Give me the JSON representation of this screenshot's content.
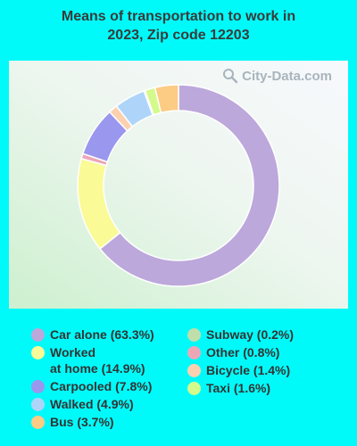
{
  "title": {
    "line1": "Means of transportation to work in",
    "line2": "2023, Zip code 12203"
  },
  "watermark": "City-Data.com",
  "chart_data": {
    "type": "pie",
    "donut": true,
    "start_angle_deg": 0,
    "slices": [
      {
        "label": "Car alone (63.3%)",
        "value": 63.3,
        "color": "#bca8db"
      },
      {
        "label": "Worked\nat home (14.9%)",
        "value": 14.9,
        "color": "#fafa96"
      },
      {
        "label": "Other (0.8%)",
        "value": 0.8,
        "color": "#eca7b7"
      },
      {
        "label": "Carpooled (7.8%)",
        "value": 7.8,
        "color": "#9a97ee"
      },
      {
        "label": "Bicycle (1.4%)",
        "value": 1.4,
        "color": "#fbd1b0"
      },
      {
        "label": "Walked (4.9%)",
        "value": 4.9,
        "color": "#aed5f9"
      },
      {
        "label": "Subway (0.2%)",
        "value": 0.2,
        "color": "#bfdeaa"
      },
      {
        "label": "Taxi (1.6%)",
        "value": 1.6,
        "color": "#d3fa8b"
      },
      {
        "label": "Bus (3.7%)",
        "value": 3.7,
        "color": "#fccb84"
      }
    ],
    "legend_columns": [
      [
        "Car alone (63.3%)",
        "Worked\nat home (14.9%)",
        "Carpooled (7.8%)",
        "Walked (4.9%)",
        "Bus (3.7%)"
      ],
      [
        "Subway (0.2%)",
        "Other (0.8%)",
        "Bicycle (1.4%)",
        "Taxi (1.6%)"
      ]
    ],
    "legend_placement": "bottom"
  }
}
